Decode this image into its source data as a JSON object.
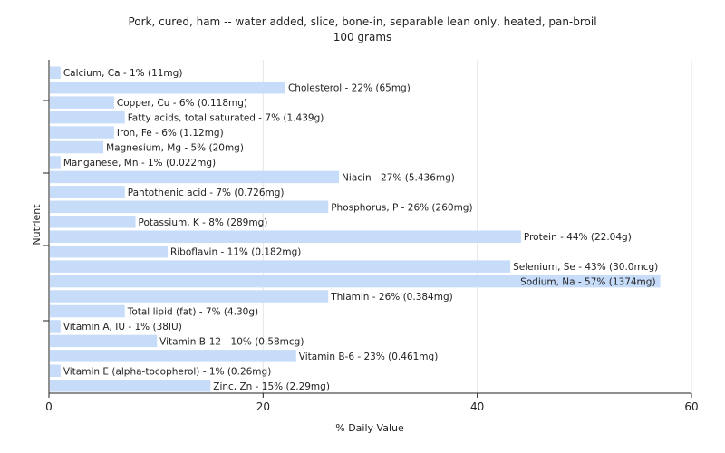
{
  "chart_data": {
    "type": "bar",
    "orientation": "horizontal",
    "title": "Pork, cured, ham -- water added, slice, bone-in, separable lean only, heated, pan-broil",
    "subtitle": "100 grams",
    "xlabel": "% Daily Value",
    "ylabel": "Nutrient",
    "xlim": [
      0,
      60
    ],
    "xticks": [
      "0",
      "20",
      "40",
      "60"
    ],
    "grid": true,
    "bar_color": "#c6dcf9",
    "categories": [
      "Calcium, Ca",
      "Cholesterol",
      "Copper, Cu",
      "Fatty acids, total saturated",
      "Iron, Fe",
      "Magnesium, Mg",
      "Manganese, Mn",
      "Niacin",
      "Pantothenic acid",
      "Phosphorus, P",
      "Potassium, K",
      "Protein",
      "Riboflavin",
      "Selenium, Se",
      "Sodium, Na",
      "Thiamin",
      "Total lipid (fat)",
      "Vitamin A, IU",
      "Vitamin B-12",
      "Vitamin B-6",
      "Vitamin E (alpha-tocopherol)",
      "Zinc, Zn"
    ],
    "values": [
      1,
      22,
      6,
      7,
      6,
      5,
      1,
      27,
      7,
      26,
      8,
      44,
      11,
      43,
      57,
      26,
      7,
      1,
      10,
      23,
      1,
      15
    ],
    "labels": [
      "Calcium, Ca - 1% (11mg)",
      "Cholesterol - 22% (65mg)",
      "Copper, Cu - 6% (0.118mg)",
      "Fatty acids, total saturated - 7% (1.439g)",
      "Iron, Fe - 6% (1.12mg)",
      "Magnesium, Mg - 5% (20mg)",
      "Manganese, Mn - 1% (0.022mg)",
      "Niacin - 27% (5.436mg)",
      "Pantothenic acid - 7% (0.726mg)",
      "Phosphorus, P - 26% (260mg)",
      "Potassium, K - 8% (289mg)",
      "Protein - 44% (22.04g)",
      "Riboflavin - 11% (0.182mg)",
      "Selenium, Se - 43% (30.0mcg)",
      "Sodium, Na - 57% (1374mg)",
      "Thiamin - 26% (0.384mg)",
      "Total lipid (fat) - 7% (4.30g)",
      "Vitamin A, IU - 1% (38IU)",
      "Vitamin B-12 - 10% (0.58mcg)",
      "Vitamin B-6 - 23% (0.461mg)",
      "Vitamin E (alpha-tocopherol) - 1% (0.26mg)",
      "Zinc, Zn - 15% (2.29mg)"
    ]
  }
}
